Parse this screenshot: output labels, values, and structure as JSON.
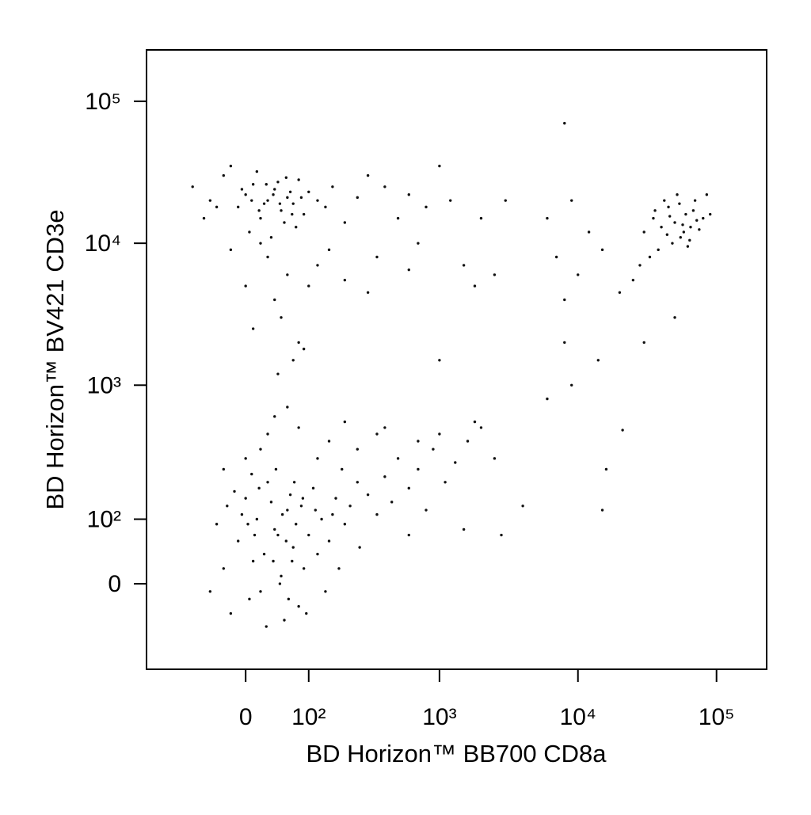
{
  "chart_data": {
    "type": "scatter",
    "x_label": "BD Horizon™ BB700 CD8a",
    "y_label": "BD Horizon™ BV421 CD3e",
    "xscale": "biexponential",
    "yscale": "biexponential",
    "xlim": [
      -200,
      230000
    ],
    "ylim": [
      -150,
      230000
    ],
    "xticks": [
      0,
      {
        "value": 100,
        "label": "10²"
      },
      {
        "value": 1000,
        "label": "10³"
      },
      {
        "value": 10000,
        "label": "10⁴"
      },
      {
        "value": 100000,
        "label": "10⁵"
      }
    ],
    "yticks": [
      0,
      {
        "value": 100,
        "label": "10²"
      },
      {
        "value": 1000,
        "label": "10³"
      },
      {
        "value": 10000,
        "label": "10⁴"
      },
      {
        "value": 100000,
        "label": "10⁵"
      }
    ],
    "color": "#111111",
    "x": [
      -30,
      -10,
      5,
      15,
      25,
      40,
      50,
      60,
      70,
      80,
      -20,
      0,
      10,
      20,
      30,
      45,
      55,
      65,
      75,
      90,
      -40,
      -5,
      12,
      35,
      48,
      58,
      68,
      85,
      100,
      110,
      120,
      130,
      150,
      170,
      200,
      220,
      250,
      300,
      350,
      400,
      -50,
      -15,
      8,
      28,
      42,
      62,
      95,
      140,
      180,
      260,
      -25,
      3,
      18,
      38,
      52,
      72,
      88,
      115,
      160,
      190,
      450,
      500,
      600,
      700,
      800,
      900,
      1100,
      1300,
      1600,
      2000,
      2500,
      2800,
      1500,
      600,
      1800,
      700,
      350,
      150,
      80,
      40,
      20,
      0,
      -30,
      250,
      120,
      1000,
      400,
      60,
      30,
      200,
      -80,
      -50,
      -30,
      -10,
      0,
      10,
      20,
      30,
      40,
      50,
      60,
      70,
      80,
      90,
      100,
      120,
      140,
      160,
      200,
      250,
      -60,
      -20,
      5,
      15,
      25,
      35,
      45,
      55,
      65,
      75,
      -40,
      -5,
      8,
      18,
      28,
      38,
      48,
      58,
      68,
      85,
      300,
      400,
      500,
      600,
      800,
      1000,
      1200,
      700,
      350,
      150,
      30,
      60,
      100,
      50,
      80,
      70,
      40,
      120,
      200,
      20,
      -20,
      0,
      10,
      45,
      90,
      300,
      600,
      1500,
      2500,
      3000,
      30000,
      35000,
      40000,
      45000,
      50000,
      55000,
      60000,
      65000,
      70000,
      80000,
      38000,
      42000,
      48000,
      52000,
      58000,
      62000,
      68000,
      75000,
      85000,
      90000,
      33000,
      36000,
      44000,
      46000,
      54000,
      57000,
      64000,
      72000,
      28000,
      25000,
      20000,
      15000,
      10000,
      8000,
      7000,
      12000,
      9000,
      6000,
      50000,
      30000,
      8000,
      4000,
      15000,
      16000,
      21000,
      9000,
      6000,
      14000,
      1000,
      8000,
      2000,
      1800
    ],
    "values": [
      20,
      60,
      -20,
      100,
      40,
      80,
      10,
      120,
      50,
      -30,
      -40,
      150,
      30,
      -10,
      200,
      70,
      -50,
      160,
      90,
      20,
      90,
      110,
      70,
      140,
      0,
      60,
      30,
      130,
      70,
      180,
      40,
      100,
      60,
      150,
      90,
      130,
      200,
      160,
      110,
      220,
      -10,
      170,
      230,
      -60,
      250,
      -20,
      -40,
      -10,
      20,
      50,
      130,
      90,
      180,
      30,
      110,
      200,
      150,
      120,
      110,
      250,
      140,
      300,
      180,
      250,
      120,
      350,
      200,
      280,
      400,
      500,
      300,
      70,
      80,
      70,
      550,
      400,
      450,
      400,
      500,
      600,
      350,
      300,
      250,
      350,
      300,
      450,
      500,
      700,
      450,
      550,
      25000,
      20000,
      30000,
      18000,
      22000,
      26000,
      15000,
      20000,
      24000,
      17000,
      21000,
      19000,
      28000,
      16000,
      23000,
      20000,
      18000,
      25000,
      14000,
      21000,
      15000,
      35000,
      12000,
      32000,
      19000,
      11000,
      27000,
      14000,
      23000,
      13000,
      18000,
      24000,
      20000,
      17000,
      26000,
      22000,
      19000,
      29000,
      16000,
      21000,
      30000,
      25000,
      15000,
      22000,
      18000,
      35000,
      20000,
      10000,
      8000,
      9000,
      8000,
      6000,
      5000,
      3000,
      2000,
      1500,
      4000,
      7000,
      5500,
      10000,
      9000,
      5000,
      2500,
      1200,
      1800,
      4500,
      6500,
      7000,
      6000,
      20000,
      12000,
      15000,
      13000,
      18000,
      14000,
      11000,
      16000,
      13000,
      20000,
      15000,
      9000,
      20000,
      10000,
      22000,
      12000,
      9500,
      17000,
      12500,
      22000,
      16000,
      8000,
      17000,
      11500,
      15500,
      19000,
      13500,
      10500,
      14500,
      7000,
      5500,
      4500,
      9000,
      6000,
      4000,
      8000,
      12000,
      20000,
      15000,
      3000,
      2000,
      70000,
      130,
      120,
      250,
      480,
      1000,
      800,
      1500,
      1500,
      2000,
      15000,
      5000
    ]
  }
}
